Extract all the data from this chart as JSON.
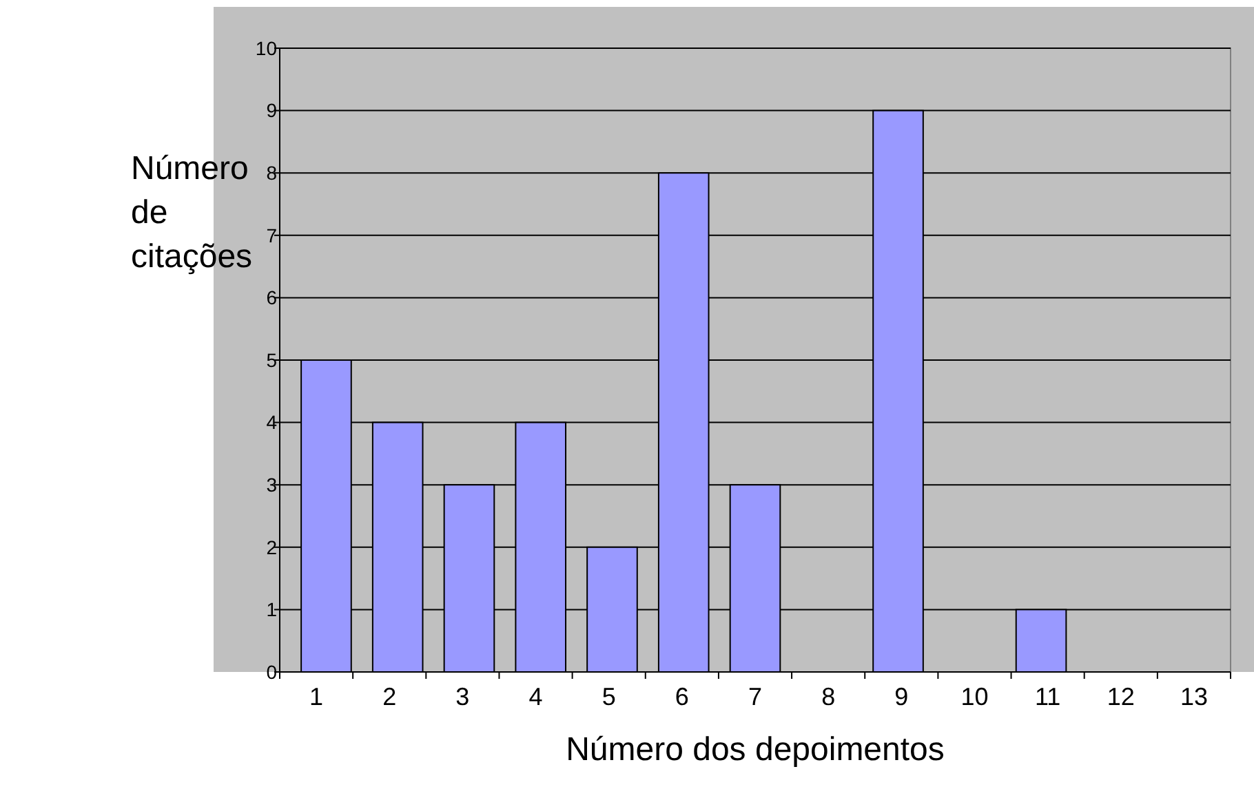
{
  "chart_data": {
    "type": "bar",
    "xlabel": "Número dos depoimentos",
    "ylabel": "Número de citações",
    "categories": [
      "1",
      "2",
      "3",
      "4",
      "5",
      "6",
      "7",
      "8",
      "9",
      "10",
      "11",
      "12",
      "13"
    ],
    "values": [
      5,
      4,
      3,
      4,
      2,
      8,
      3,
      0,
      9,
      0,
      1,
      0,
      0
    ],
    "color": "#9999ff",
    "ylim": [
      0,
      10
    ],
    "yticks": [
      0,
      1,
      2,
      3,
      4,
      5,
      6,
      7,
      8,
      9,
      10
    ],
    "grid": "y"
  }
}
